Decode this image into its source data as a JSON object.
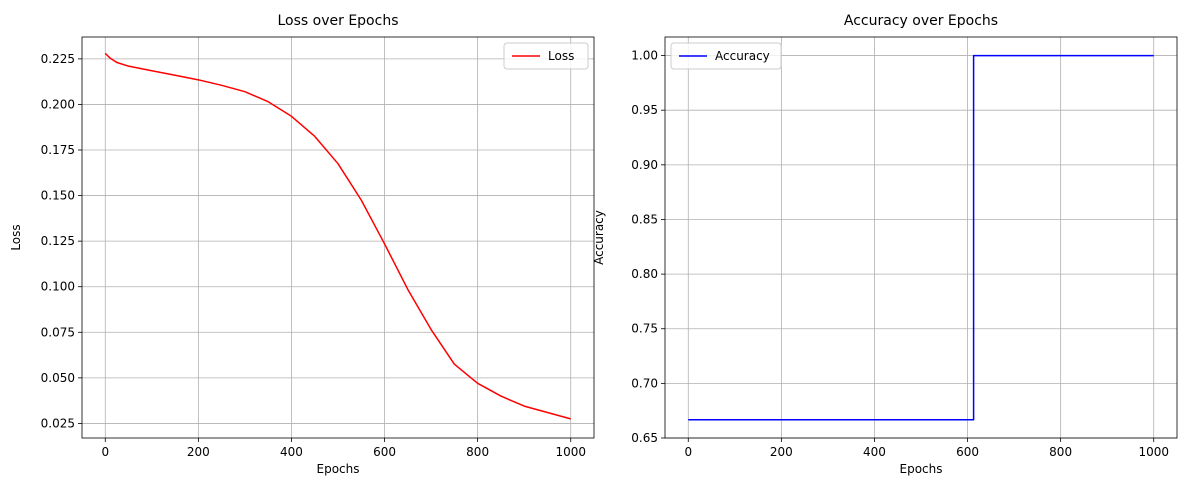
{
  "chart_data": [
    {
      "type": "line",
      "title": "Loss over Epochs",
      "xlabel": "Epochs",
      "ylabel": "Loss",
      "xlim": [
        -50,
        1050
      ],
      "ylim": [
        0.017,
        0.237
      ],
      "xticks": [
        0,
        200,
        400,
        600,
        800,
        1000
      ],
      "yticks": [
        0.025,
        0.05,
        0.075,
        0.1,
        0.125,
        0.15,
        0.175,
        0.2,
        0.225
      ],
      "xtick_labels": [
        "0",
        "200",
        "400",
        "600",
        "800",
        "1000"
      ],
      "ytick_labels": [
        "0.025",
        "0.050",
        "0.075",
        "0.100",
        "0.125",
        "0.150",
        "0.175",
        "0.200",
        "0.225"
      ],
      "grid": true,
      "legend_position": "top-right",
      "series": [
        {
          "name": "Loss",
          "color": "#ff0000",
          "x": [
            0,
            10,
            25,
            50,
            100,
            150,
            200,
            250,
            300,
            350,
            400,
            450,
            500,
            550,
            600,
            650,
            700,
            750,
            800,
            850,
            900,
            950,
            1000
          ],
          "y": [
            0.228,
            0.2255,
            0.223,
            0.221,
            0.2185,
            0.216,
            0.2135,
            0.2105,
            0.207,
            0.2015,
            0.1935,
            0.1825,
            0.1675,
            0.1475,
            0.1235,
            0.0985,
            0.0765,
            0.0575,
            0.047,
            0.04,
            0.0345,
            0.031,
            0.0275
          ]
        }
      ]
    },
    {
      "type": "line",
      "title": "Accuracy over Epochs",
      "xlabel": "Epochs",
      "ylabel": "Accuracy",
      "xlim": [
        -50,
        1050
      ],
      "ylim": [
        0.65,
        1.017
      ],
      "xticks": [
        0,
        200,
        400,
        600,
        800,
        1000
      ],
      "yticks": [
        0.65,
        0.7,
        0.75,
        0.8,
        0.85,
        0.9,
        0.95,
        1.0
      ],
      "xtick_labels": [
        "0",
        "200",
        "400",
        "600",
        "800",
        "1000"
      ],
      "ytick_labels": [
        "0.65",
        "0.70",
        "0.75",
        "0.80",
        "0.85",
        "0.90",
        "0.95",
        "1.00"
      ],
      "grid": true,
      "legend_position": "top-left",
      "series": [
        {
          "name": "Accuracy",
          "color": "#0000ff",
          "x": [
            0,
            613,
            613,
            1000
          ],
          "y": [
            0.6667,
            0.6667,
            1.0,
            1.0
          ]
        }
      ]
    }
  ]
}
